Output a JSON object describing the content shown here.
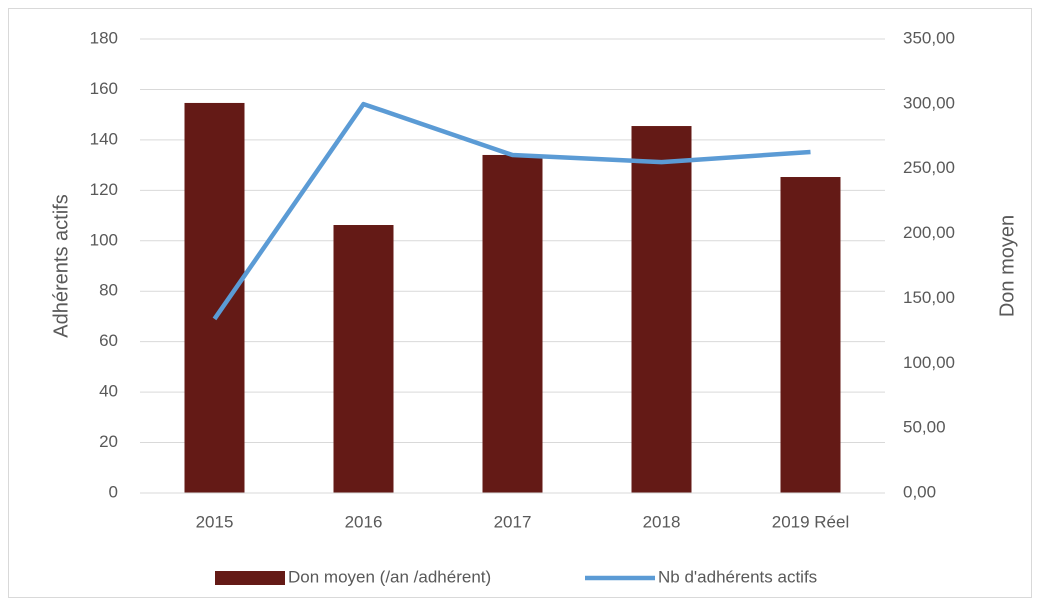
{
  "chart_data": {
    "type": "bar_line",
    "categories": [
      "2015",
      "2016",
      "2017",
      "2018",
      "2019 Réel"
    ],
    "series": [
      {
        "name": "Don moyen (/an /adhérent)",
        "type": "bar",
        "axis": "y2",
        "color": "#641a16",
        "values": [
          300.7,
          206.6,
          260.6,
          282.9,
          243.6
        ]
      },
      {
        "name": "Nb d'adhérents actifs",
        "type": "line",
        "color": "#5b9bd5",
        "values": [
          69,
          154.2,
          134,
          131.2,
          135.2
        ]
      }
    ],
    "ylabel": "Adhérents actifs",
    "y2label": "Don moyen",
    "ylim": [
      0,
      180
    ],
    "yticks": [
      0,
      20,
      40,
      60,
      80,
      100,
      120,
      140,
      160,
      180
    ],
    "y2lim": [
      0,
      350
    ],
    "y2ticks": [
      {
        "value": 0,
        "label": "0,00"
      },
      {
        "value": 50,
        "label": "50,00"
      },
      {
        "value": 100,
        "label": "100,00"
      },
      {
        "value": 150,
        "label": "150,00"
      },
      {
        "value": 200,
        "label": "200,00"
      },
      {
        "value": 250,
        "label": "250,00"
      },
      {
        "value": 300,
        "label": "300,00"
      },
      {
        "value": 350,
        "label": "350,00"
      }
    ],
    "grid": true,
    "legend": "bottom"
  }
}
